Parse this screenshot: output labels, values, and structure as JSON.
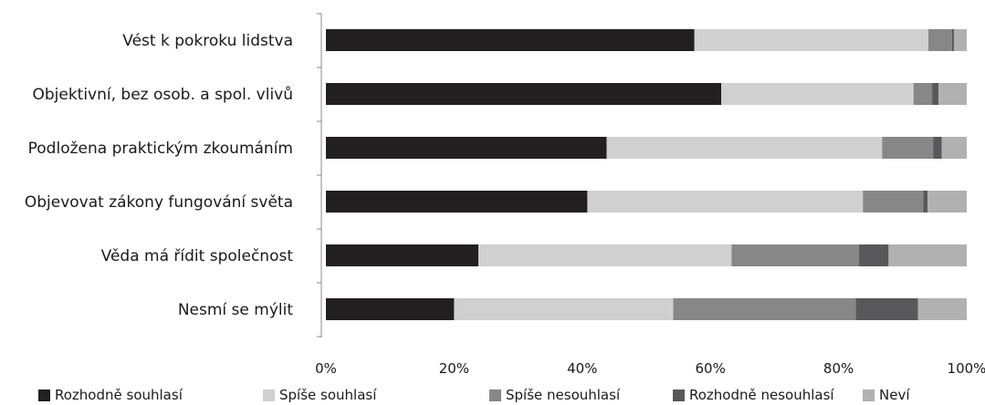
{
  "chart_data": {
    "type": "bar",
    "orientation": "horizontal",
    "stacked": true,
    "categories": [
      "Vést k pokroku lidstva",
      "Objektivní, bez osob. a spol. vlivů",
      "Podložena praktickým zkoumáním",
      "Objevovat zákony fungování světa",
      "Věda má řídit společnost",
      "Nesmí se mýlit"
    ],
    "series": [
      {
        "name": "Rozhodně souhlasí",
        "color": "#231f20",
        "values": [
          57.5,
          61.7,
          43.8,
          40.8,
          23.8,
          20.0
        ]
      },
      {
        "name": "Spíše souhlasí",
        "color": "#d0d0d0",
        "values": [
          36.5,
          30.0,
          43.0,
          43.0,
          39.5,
          34.2
        ]
      },
      {
        "name": "Spíše nesouhlasí",
        "color": "#878787",
        "values": [
          3.7,
          2.9,
          8.0,
          9.4,
          19.9,
          28.5
        ]
      },
      {
        "name": "Rozhodně nesouhlasí",
        "color": "#58585a",
        "values": [
          0.3,
          1.0,
          1.3,
          0.7,
          4.6,
          9.7
        ]
      },
      {
        "name": "Neví",
        "color": "#b1b1b1",
        "values": [
          2.0,
          4.4,
          3.9,
          6.1,
          12.2,
          7.6
        ]
      }
    ],
    "xlim": [
      0,
      100
    ],
    "xticks": [
      "0%",
      "20%",
      "40%",
      "60%",
      "80%",
      "100%"
    ],
    "xlabel": "",
    "ylabel": "",
    "title": "",
    "grid": false,
    "legend_position": "bottom"
  }
}
